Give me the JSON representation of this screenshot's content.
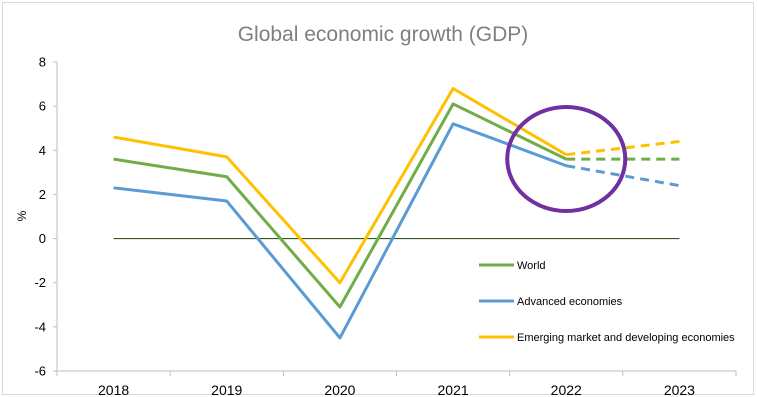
{
  "chart_data": {
    "type": "line",
    "title": "Global economic growth (GDP)",
    "ylabel": "%",
    "xlabel": "",
    "categories": [
      "2018",
      "2019",
      "2020",
      "2021",
      "2022",
      "2023"
    ],
    "ylim": [
      -6,
      8
    ],
    "yticks": [
      8,
      6,
      4,
      2,
      0,
      -2,
      -4,
      -6
    ],
    "projection_from": "2022",
    "legend_position": "bottom-right",
    "grid": false,
    "series": [
      {
        "name": "World",
        "values": [
          3.6,
          2.8,
          -3.1,
          6.1,
          3.6,
          3.6
        ],
        "color": "#70ad47"
      },
      {
        "name": "Advanced economies",
        "values": [
          2.3,
          1.7,
          -4.5,
          5.2,
          3.3,
          2.4
        ],
        "color": "#5b9bd5"
      },
      {
        "name": "Emerging market and developing economies",
        "values": [
          4.6,
          3.7,
          -2.0,
          6.8,
          3.8,
          4.4
        ],
        "color": "#ffc000"
      }
    ],
    "zero_line_color": "#375623",
    "annotation": {
      "shape": "ellipse",
      "around": "2022",
      "color": "#7030a0"
    }
  }
}
